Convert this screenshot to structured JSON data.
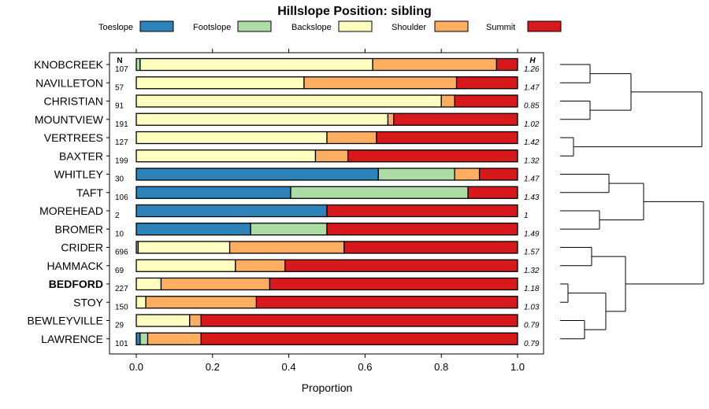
{
  "chart_data": {
    "type": "bar",
    "orientation": "horizontal",
    "stacked": true,
    "title": "Hillslope Position: sibling",
    "xlabel": "Proportion",
    "ylabel": "",
    "xlim": [
      0,
      1
    ],
    "x_ticks": [
      "0.0",
      "0.2",
      "0.4",
      "0.6",
      "0.8",
      "1.0"
    ],
    "x_tick_values": [
      0,
      0.2,
      0.4,
      0.6,
      0.8,
      1.0
    ],
    "n_header": "N",
    "h_header": "H",
    "legend": [
      {
        "name": "Toeslope",
        "color": "#2B83BA"
      },
      {
        "name": "Footslope",
        "color": "#ABDDA4"
      },
      {
        "name": "Backslope",
        "color": "#FFFFBF"
      },
      {
        "name": "Shoulder",
        "color": "#FDAE61"
      },
      {
        "name": "Summit",
        "color": "#D7191C"
      }
    ],
    "categories": [
      "KNOBCREEK",
      "NAVILLETON",
      "CHRISTIAN",
      "MOUNTVIEW",
      "VERTREES",
      "BAXTER",
      "WHITLEY",
      "TAFT",
      "MOREHEAD",
      "BROMER",
      "CRIDER",
      "HAMMACK",
      "BEDFORD",
      "STOY",
      "BEWLEYVILLE",
      "LAWRENCE"
    ],
    "highlight": "BEDFORD",
    "n": [
      "107",
      "57",
      "91",
      "191",
      "127",
      "199",
      "30",
      "106",
      "2",
      "10",
      "696",
      "69",
      "227",
      "150",
      "29",
      "101"
    ],
    "h": [
      "1.26",
      "1.47",
      "0.85",
      "1.02",
      "1.42",
      "1.32",
      "1.47",
      "1.43",
      "1",
      "1.49",
      "1.57",
      "1.32",
      "1.18",
      "1.03",
      "0.79",
      "0.79"
    ],
    "series": [
      {
        "name": "Toeslope",
        "values": [
          0.0,
          0.0,
          0.0,
          0.0,
          0.0,
          0.0,
          0.635,
          0.405,
          0.5,
          0.3,
          0.0,
          0.0,
          0.0,
          0.0,
          0.0,
          0.01
        ]
      },
      {
        "name": "Footslope",
        "values": [
          0.01,
          0.0,
          0.0,
          0.0,
          0.0,
          0.0,
          0.2,
          0.465,
          0.0,
          0.2,
          0.005,
          0.0,
          0.0,
          0.0,
          0.0,
          0.02
        ]
      },
      {
        "name": "Backslope",
        "values": [
          0.61,
          0.44,
          0.8,
          0.66,
          0.5,
          0.47,
          0.0,
          0.0,
          0.0,
          0.0,
          0.24,
          0.26,
          0.065,
          0.025,
          0.14,
          0.0
        ]
      },
      {
        "name": "Shoulder",
        "values": [
          0.325,
          0.4,
          0.035,
          0.015,
          0.13,
          0.085,
          0.065,
          0.0,
          0.0,
          0.0,
          0.3,
          0.13,
          0.285,
          0.29,
          0.03,
          0.14
        ]
      },
      {
        "name": "Summit",
        "values": [
          0.055,
          0.16,
          0.165,
          0.325,
          0.37,
          0.445,
          0.1,
          0.13,
          0.5,
          0.5,
          0.455,
          0.61,
          0.65,
          0.685,
          0.83,
          0.83
        ]
      }
    ],
    "dendrogram": {
      "merge_order_note": "clustering of series by similarity",
      "leaves": [
        "KNOBCREEK",
        "NAVILLETON",
        "CHRISTIAN",
        "MOUNTVIEW",
        "VERTREES",
        "BAXTER",
        "WHITLEY",
        "TAFT",
        "MOREHEAD",
        "BROMER",
        "CRIDER",
        "HAMMACK",
        "BEDFORD",
        "STOY",
        "BEWLEYVILLE",
        "LAWRENCE"
      ]
    }
  }
}
